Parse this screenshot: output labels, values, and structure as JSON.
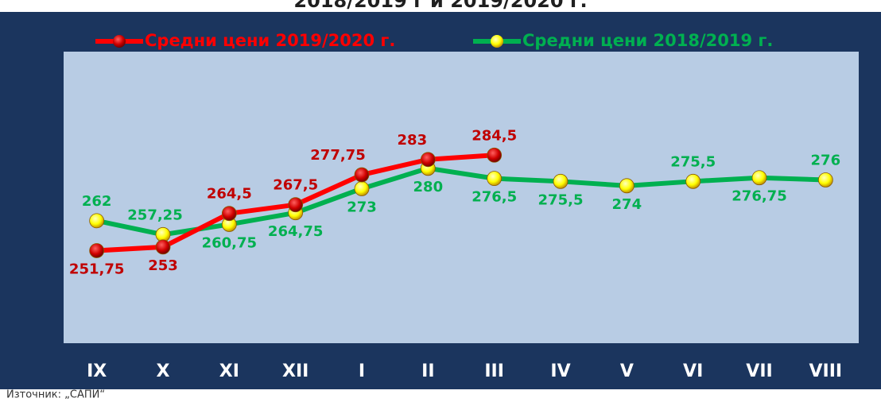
{
  "chart_data": {
    "type": "line",
    "title": "2018/2019 г и 2019/2020 г.",
    "source": "Източник: „САПИ“",
    "categories": [
      "IX",
      "X",
      "XI",
      "XII",
      "I",
      "II",
      "III",
      "IV",
      "V",
      "VI",
      "VII",
      "VIII"
    ],
    "series": [
      {
        "name": "Средни цени 2019/2020 г.",
        "color": "#ff0000",
        "label_color": "#c00000",
        "values": [
          251.75,
          253,
          264.5,
          267.5,
          277.75,
          283,
          284.5,
          null,
          null,
          null,
          null,
          null
        ],
        "value_labels": [
          "251,75",
          "253",
          "264,5",
          "267,5",
          "277,75",
          "283",
          "284,5",
          null,
          null,
          null,
          null,
          null
        ]
      },
      {
        "name": "Средни цени 2018/2019 г.",
        "color": "#00b050",
        "label_color": "#00b050",
        "values": [
          262,
          257.25,
          260.75,
          264.75,
          273,
          280,
          276.5,
          275.5,
          274,
          275.5,
          276.75,
          276
        ],
        "value_labels": [
          "262",
          "257,25",
          "260,75",
          "264,75",
          "273",
          "280",
          "276,5",
          "275,5",
          "274",
          "275,5",
          "276,75",
          "276"
        ]
      }
    ],
    "ylim": [
      220,
      320
    ]
  }
}
